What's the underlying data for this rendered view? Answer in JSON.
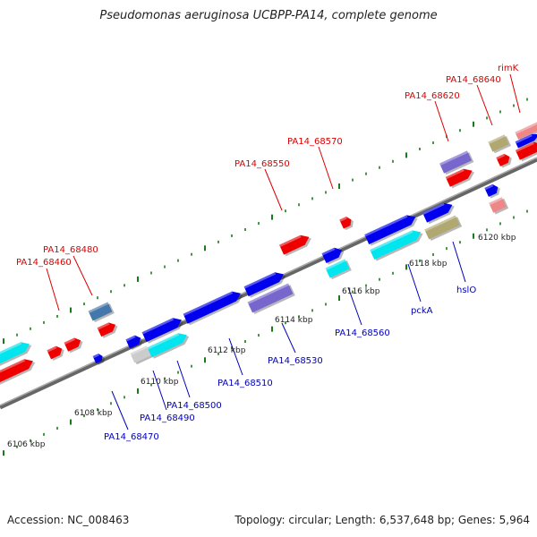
{
  "title": "Pseudomonas aeruginosa UCBPP-PA14, complete genome",
  "footer": {
    "accession": "Accession: NC_008463",
    "topology": "Topology: circular; Length: 6,537,648 bp; Genes: 5,964"
  },
  "colors": {
    "backbone": "#888888",
    "tick": "#1a7a1a",
    "top_label": "#dd0000",
    "bottom_label": "#0000bb",
    "gene_red": "#ee0000",
    "gene_blue": "#0000ee",
    "gene_cyan": "#00e5ee",
    "gene_purple": "#7766cc",
    "gene_olive": "#b0a870",
    "gene_pink": "#ee8888",
    "gene_steel": "#4477aa",
    "gene_gray": "#cccccc"
  },
  "position_labels": [
    "6106 kbp",
    "6108 kbp",
    "6110 kbp",
    "6112 kbp",
    "6114 kbp",
    "6116 kbp",
    "6118 kbp",
    "6120 kbp"
  ],
  "top_gene_labels": [
    "PA14_68460",
    "PA14_68480",
    "PA14_68550",
    "PA14_68570",
    "PA14_68620",
    "PA14_68640",
    "rimK"
  ],
  "bottom_gene_labels": [
    "PA14_68470",
    "PA14_68490",
    "PA14_68500",
    "PA14_68510",
    "PA14_68530",
    "PA14_68560",
    "pckA",
    "hslO"
  ]
}
